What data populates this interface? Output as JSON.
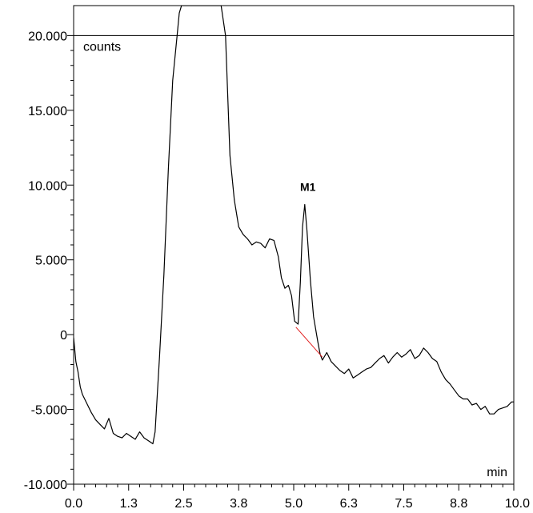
{
  "chart_data": {
    "type": "line",
    "title": "",
    "ylabel": "counts",
    "xlabel": "min",
    "xlim": [
      0.0,
      10.0
    ],
    "ylim": [
      -10000,
      22000
    ],
    "x_ticks": [
      "0.0",
      "1.3",
      "2.5",
      "3.8",
      "5.0",
      "6.3",
      "7.5",
      "8.8",
      "10.0"
    ],
    "x_tick_values": [
      0.0,
      1.25,
      2.5,
      3.75,
      5.0,
      6.25,
      7.5,
      8.75,
      10.0
    ],
    "y_ticks": [
      "-10.000",
      "-5.000",
      "0",
      "5.000",
      "10.000",
      "15.000",
      "20.000"
    ],
    "y_tick_values": [
      -10000,
      -5000,
      0,
      5000,
      10000,
      15000,
      20000
    ],
    "reference_line_y": 20000,
    "grid": false,
    "colors": {
      "trace": "#000000",
      "baseline": "#e02020",
      "axis": "#000000"
    },
    "series": [
      {
        "values_x": [
          0.0,
          0.05,
          0.1,
          0.15,
          0.2,
          0.3,
          0.4,
          0.5,
          0.6,
          0.7,
          0.8,
          0.9,
          1.0,
          1.1,
          1.2,
          1.3,
          1.4,
          1.5,
          1.6,
          1.7,
          1.8,
          1.85,
          1.95,
          2.05,
          2.15,
          2.25,
          2.35,
          2.4,
          2.45,
          3.35,
          3.45,
          3.55,
          3.65,
          3.75,
          3.85,
          3.95,
          4.05,
          4.15,
          4.25,
          4.35,
          4.45,
          4.55,
          4.65,
          4.72,
          4.8,
          4.88,
          4.95,
          5.02,
          5.1,
          5.15,
          5.2,
          5.25,
          5.3,
          5.38,
          5.45,
          5.55,
          5.6,
          5.65,
          5.75,
          5.85,
          5.95,
          6.05,
          6.15,
          6.25,
          6.35,
          6.45,
          6.55,
          6.65,
          6.75,
          6.85,
          6.95,
          7.05,
          7.15,
          7.25,
          7.35,
          7.45,
          7.55,
          7.65,
          7.75,
          7.85,
          7.95,
          8.05,
          8.15,
          8.25,
          8.35,
          8.45,
          8.55,
          8.65,
          8.75,
          8.85,
          8.95,
          9.05,
          9.15,
          9.25,
          9.35,
          9.45,
          9.55,
          9.65,
          9.75,
          9.85,
          9.95,
          10.0
        ],
        "values_y": [
          -200,
          -1800,
          -2500,
          -3500,
          -4000,
          -4600,
          -5200,
          -5700,
          -6000,
          -6300,
          -5600,
          -6600,
          -6800,
          -6900,
          -6600,
          -6800,
          -7000,
          -6500,
          -6900,
          -7100,
          -7300,
          -6500,
          -1500,
          4000,
          11000,
          17000,
          20000,
          21500,
          22000,
          22000,
          20000,
          12000,
          9000,
          7200,
          6700,
          6400,
          6000,
          6200,
          6100,
          5800,
          6400,
          6300,
          5200,
          3800,
          3100,
          3300,
          2600,
          900,
          700,
          3500,
          7200,
          8700,
          7000,
          3600,
          1200,
          -500,
          -1300,
          -1700,
          -1200,
          -1800,
          -2100,
          -2400,
          -2600,
          -2300,
          -2900,
          -2700,
          -2500,
          -2300,
          -2200,
          -1900,
          -1600,
          -1400,
          -1900,
          -1500,
          -1200,
          -1500,
          -1300,
          -1000,
          -1600,
          -1400,
          -900,
          -1200,
          -1600,
          -1800,
          -2500,
          -3000,
          -3300,
          -3700,
          -4100,
          -4300,
          -4300,
          -4700,
          -4600,
          -5000,
          -4800,
          -5300,
          -5300,
          -5000,
          -4900,
          -4800,
          -4500,
          -4500
        ]
      }
    ],
    "baseline_segment": {
      "x": [
        5.05,
        5.65
      ],
      "y": [
        500,
        -1500
      ]
    },
    "annotations": [
      {
        "text": "M1",
        "x": 5.25,
        "y": 9600
      }
    ]
  }
}
